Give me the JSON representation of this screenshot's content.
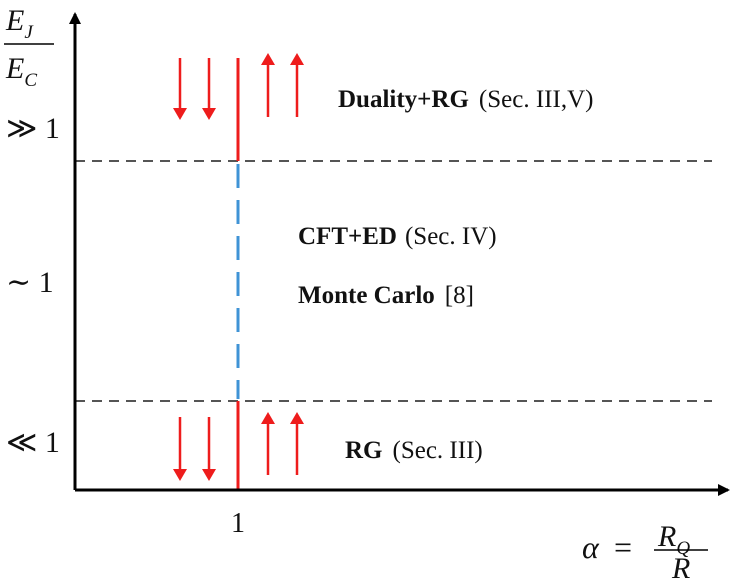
{
  "y_axis": {
    "fraction_num_base": "E",
    "fraction_num_sub": "J",
    "fraction_den_base": "E",
    "fraction_den_sub": "C",
    "ticks": {
      "high": "≫ 1",
      "mid": "∼ 1",
      "low": "≪ 1"
    }
  },
  "x_axis": {
    "tick": "1",
    "alpha": "α",
    "equals": "=",
    "fraction_num_base": "R",
    "fraction_num_sub": "Q",
    "fraction_den": "R"
  },
  "regions": {
    "top": {
      "method": "Duality+RG",
      "ref": "(Sec. III,V)"
    },
    "middle": {
      "line1_method": "CFT+ED",
      "line1_ref": "(Sec. IV)",
      "line2_method": "Monte Carlo",
      "line2_ref": "[8]"
    },
    "bottom": {
      "method": "RG",
      "ref": "(Sec. III)"
    }
  },
  "colors": {
    "axis": "#000000",
    "arrows": "#ee1c1c",
    "critical_line_solid": "#ee1c1c",
    "critical_line_dashed": "#3f93d6",
    "divider": "#555555"
  },
  "flow_arrows": {
    "left_of_critical": "down",
    "right_of_critical": "up"
  }
}
